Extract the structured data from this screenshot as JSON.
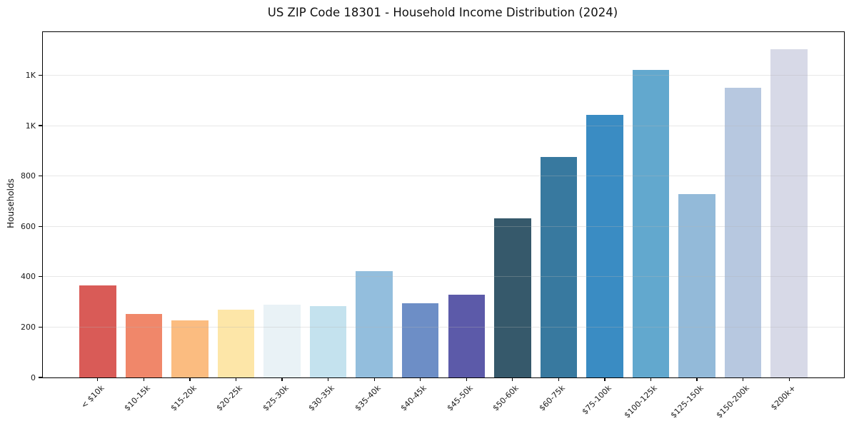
{
  "chart_data": {
    "type": "bar",
    "title": "US ZIP Code 18301 - Household Income Distribution (2024)",
    "xlabel": "",
    "ylabel": "Households",
    "categories": [
      "< $10k",
      "$10-15k",
      "$15-20k",
      "$20-25k",
      "$25-30k",
      "$30-35k",
      "$35-40k",
      "$40-45k",
      "$45-50k",
      "$50-60k",
      "$60-75k",
      "$75-100k",
      "$100-125k",
      "$125-150k",
      "$150-200k",
      "$200k+"
    ],
    "values": [
      366,
      251,
      228,
      270,
      290,
      283,
      421,
      296,
      328,
      631,
      875,
      1042,
      1221,
      728,
      1151,
      1302
    ],
    "bar_colors": [
      "#d95b57",
      "#f0876a",
      "#fbbc80",
      "#fde6a8",
      "#e9f2f6",
      "#c4e2ee",
      "#93bedd",
      "#6d8ec6",
      "#5c5aa9",
      "#36596b",
      "#38799f",
      "#3a8cc3",
      "#62a8ce",
      "#93bad9",
      "#b7c8e0",
      "#d7d9e7"
    ],
    "yticks": {
      "values": [
        0,
        200,
        400,
        600,
        800,
        1000,
        1200
      ],
      "labels": [
        "0",
        "200",
        "400",
        "600",
        "800",
        "1K",
        "1K"
      ]
    },
    "ylim": [
      0,
      1371
    ],
    "x_tick_rotation": 45,
    "grid": "horizontal",
    "legend": "none",
    "frame_color": "#000000",
    "background_color": "#ffffff"
  }
}
